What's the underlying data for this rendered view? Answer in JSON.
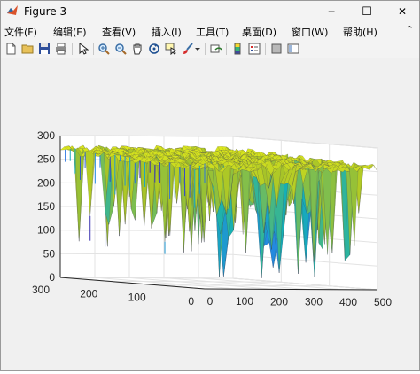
{
  "window": {
    "title": "Figure 3",
    "controls": {
      "minimize": "─",
      "maximize": "☐",
      "close": "✕"
    }
  },
  "menu": {
    "items": [
      "文件(F)",
      "编辑(E)",
      "查看(V)",
      "插入(I)",
      "工具(T)",
      "桌面(D)",
      "窗口(W)",
      "帮助(H)"
    ],
    "overflow": "⌃"
  },
  "toolbar": {
    "icons": [
      "new-figure-icon",
      "open-file-icon",
      "save-icon",
      "print-icon",
      "edit-plot-icon",
      "zoom-in-icon",
      "zoom-out-icon",
      "pan-icon",
      "rotate-3d-icon",
      "data-cursor-icon",
      "brush-icon",
      "brush-dropdown-icon",
      "link-plot-icon",
      "colorbar-icon",
      "legend-icon",
      "hide-plot-tools-icon",
      "show-plot-tools-icon"
    ]
  },
  "chart_data": {
    "type": "surface",
    "colormap": "parula",
    "grid": true,
    "x_ticks": [
      "0",
      "100",
      "200",
      "300",
      "400",
      "500"
    ],
    "y_ticks": [
      "0",
      "100",
      "200",
      "300"
    ],
    "z_ticks": [
      "0",
      "50",
      "100",
      "150",
      "200",
      "250",
      "300"
    ],
    "xlim": [
      0,
      500
    ],
    "ylim": [
      0,
      300
    ],
    "zlim": [
      0,
      300
    ],
    "surface_summary": {
      "plateau_height": 280,
      "minimum_height": 20,
      "dominant_color": "#f5d82e"
    }
  }
}
